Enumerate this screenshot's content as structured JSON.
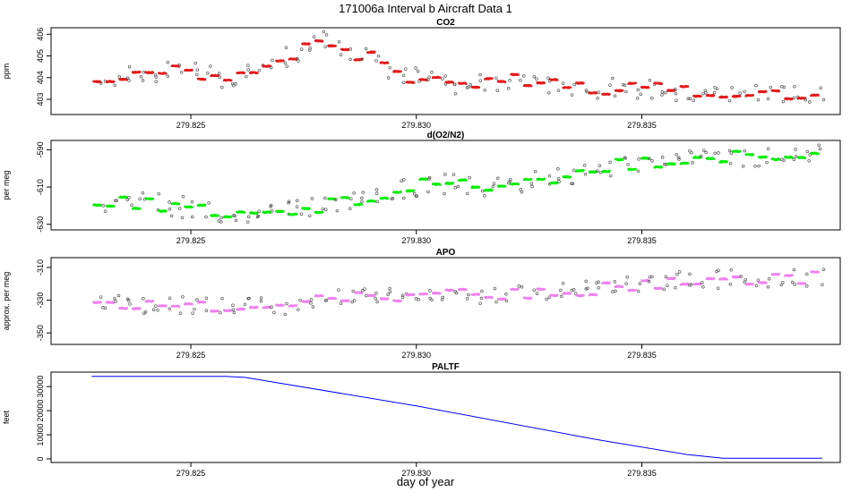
{
  "figure": {
    "title": "171006a   Interval b Aircraft Data 1",
    "xlabel": "day of year"
  },
  "chart_data": [
    {
      "type": "scatter",
      "title": "CO2",
      "ylabel": "ppm",
      "color": "#e41a1c",
      "xlim": [
        279.8219,
        279.8394
      ],
      "ylim": [
        402.3,
        406.3
      ],
      "xticks": [
        "279.825",
        "279.830",
        "279.835"
      ],
      "xtick_values": [
        279.825,
        279.83,
        279.835
      ],
      "yticks": [
        "403",
        "404",
        "405",
        "406"
      ],
      "ytick_values": [
        403,
        404,
        405,
        406
      ],
      "x_start": 279.8228,
      "x_end": 279.839,
      "trend": [
        [
          279.8228,
          404.0
        ],
        [
          279.824,
          404.2
        ],
        [
          279.825,
          404.3
        ],
        [
          279.826,
          403.9
        ],
        [
          279.8268,
          404.6
        ],
        [
          279.8275,
          405.3
        ],
        [
          279.828,
          405.7
        ],
        [
          279.8285,
          405.2
        ],
        [
          279.829,
          404.9
        ],
        [
          279.8295,
          404.2
        ],
        [
          279.83,
          404.0
        ],
        [
          279.831,
          403.7
        ],
        [
          279.832,
          403.9
        ],
        [
          279.833,
          403.7
        ],
        [
          279.834,
          403.5
        ],
        [
          279.835,
          403.5
        ],
        [
          279.836,
          403.4
        ],
        [
          279.837,
          403.3
        ],
        [
          279.838,
          403.2
        ],
        [
          279.839,
          403.1
        ]
      ],
      "noise": 0.4
    },
    {
      "type": "scatter",
      "title": "d(O2/N2)",
      "ylabel": "per meg",
      "color": "#00ee00",
      "xlim": [
        279.8219,
        279.8394
      ],
      "ylim": [
        -633,
        -585
      ],
      "xticks": [
        "279.825",
        "279.830",
        "279.835"
      ],
      "xtick_values": [
        279.825,
        279.83,
        279.835
      ],
      "yticks": [
        "-630",
        "-610",
        "-590"
      ],
      "ytick_values": [
        -630,
        -610,
        -590
      ],
      "x_start": 279.8228,
      "x_end": 279.839,
      "trend": [
        [
          279.8228,
          -617
        ],
        [
          279.824,
          -619
        ],
        [
          279.825,
          -621
        ],
        [
          279.826,
          -624
        ],
        [
          279.8268,
          -623
        ],
        [
          279.8275,
          -622
        ],
        [
          279.8285,
          -617
        ],
        [
          279.8295,
          -612
        ],
        [
          279.8305,
          -607
        ],
        [
          279.8315,
          -612
        ],
        [
          279.8325,
          -607
        ],
        [
          279.8335,
          -605
        ],
        [
          279.8345,
          -598
        ],
        [
          279.8355,
          -596
        ],
        [
          279.8365,
          -594
        ],
        [
          279.8375,
          -594
        ],
        [
          279.839,
          -592
        ]
      ],
      "noise": 5
    },
    {
      "type": "scatter",
      "title": "APO",
      "ylabel": "approx. per meg",
      "color": "#ee82ee",
      "xlim": [
        279.8219,
        279.8394
      ],
      "ylim": [
        -357,
        -304
      ],
      "xticks": [
        "279.825",
        "279.830",
        "279.835"
      ],
      "xtick_values": [
        279.825,
        279.83,
        279.835
      ],
      "yticks": [
        "-350",
        "-330",
        "-310"
      ],
      "ytick_values": [
        -350,
        -330,
        -310
      ],
      "x_start": 279.8228,
      "x_end": 279.839,
      "trend": [
        [
          279.8228,
          -332
        ],
        [
          279.824,
          -334
        ],
        [
          279.825,
          -333
        ],
        [
          279.826,
          -334
        ],
        [
          279.827,
          -333
        ],
        [
          279.828,
          -330
        ],
        [
          279.829,
          -328
        ],
        [
          279.83,
          -328
        ],
        [
          279.831,
          -326
        ],
        [
          279.832,
          -326
        ],
        [
          279.833,
          -325
        ],
        [
          279.834,
          -323
        ],
        [
          279.835,
          -320
        ],
        [
          279.836,
          -318
        ],
        [
          279.837,
          -317
        ],
        [
          279.838,
          -317
        ],
        [
          279.839,
          -316
        ]
      ],
      "noise": 5
    },
    {
      "type": "line",
      "title": "PALTF",
      "ylabel": "feet",
      "color": "#0000ff",
      "xlim": [
        279.8219,
        279.8394
      ],
      "ylim": [
        -1500,
        36000
      ],
      "xticks": [
        "279.825",
        "279.830",
        "279.835"
      ],
      "xtick_values": [
        279.825,
        279.83,
        279.835
      ],
      "yticks": [
        "0",
        "10000",
        "20000",
        "30000"
      ],
      "ytick_values": [
        0,
        10000,
        20000,
        30000
      ],
      "x": [
        279.8228,
        279.8258,
        279.8262,
        279.83,
        279.834,
        279.836,
        279.8368,
        279.839
      ],
      "y": [
        34200,
        34200,
        33800,
        22000,
        8000,
        1800,
        300,
        300
      ]
    }
  ]
}
